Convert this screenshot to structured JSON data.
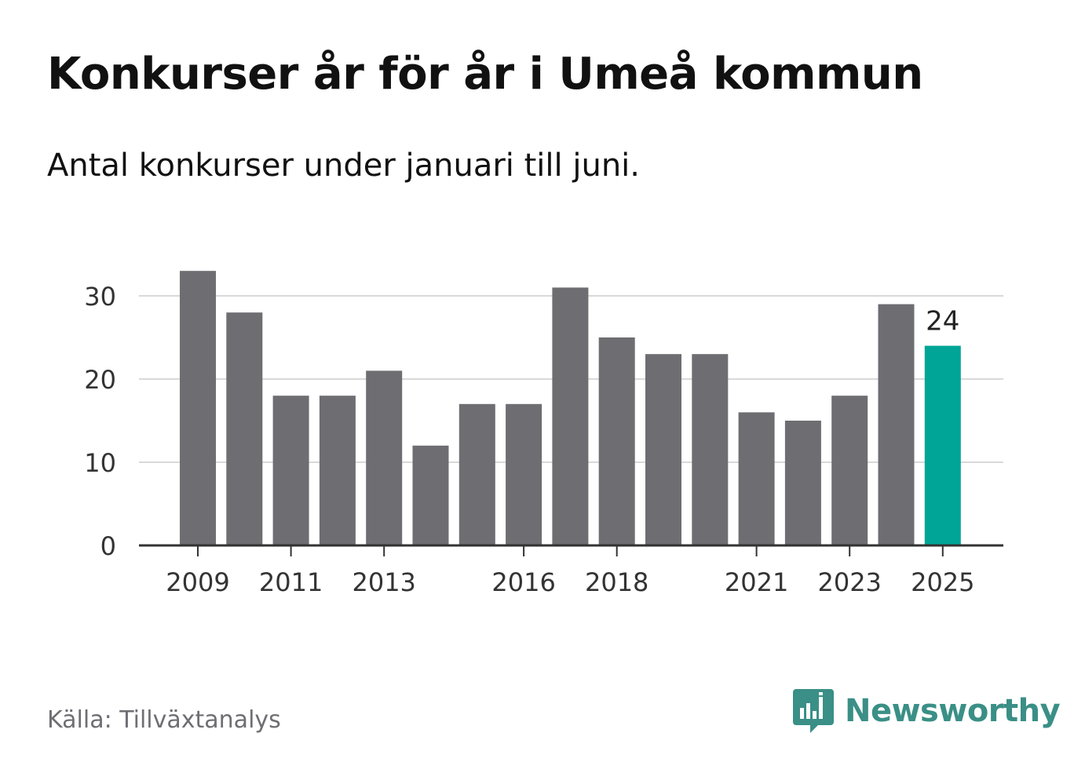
{
  "title": "Konkurser år för år i Umeå kommun",
  "subtitle": "Antal konkurser under januari till juni.",
  "source": "Källa: Tillväxtanalys",
  "brand": {
    "name": "Newsworthy",
    "color": "#3a8f86"
  },
  "colors": {
    "bar": "#6e6d72",
    "highlight": "#00a597",
    "grid": "#d9d9d9",
    "axis": "#333333",
    "tick_text": "#333333"
  },
  "chart_data": {
    "type": "bar",
    "categories": [
      "2009",
      "2010",
      "2011",
      "2012",
      "2013",
      "2014",
      "2015",
      "2016",
      "2017",
      "2018",
      "2019",
      "2020",
      "2021",
      "2022",
      "2023",
      "2024",
      "2025"
    ],
    "values": [
      33,
      28,
      18,
      18,
      21,
      12,
      17,
      17,
      31,
      25,
      23,
      23,
      16,
      15,
      18,
      29,
      24
    ],
    "x_tick_labels": [
      "2009",
      "2011",
      "2013",
      "2016",
      "2018",
      "2021",
      "2023",
      "2025"
    ],
    "y_ticks": [
      0,
      10,
      20,
      30
    ],
    "ylim": [
      0,
      34
    ],
    "highlight": {
      "category": "2025",
      "label": "24"
    },
    "grid": true
  }
}
